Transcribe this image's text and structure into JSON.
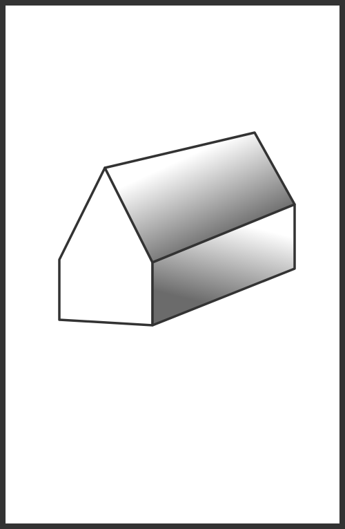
{
  "figure": {
    "frame_color": "#333333",
    "background_color": "#ffffff",
    "outline_color": "#333333",
    "shading": {
      "light": "#ffffff",
      "dark": "#6b6b6b"
    },
    "description_icon": "house-prism-icon"
  }
}
